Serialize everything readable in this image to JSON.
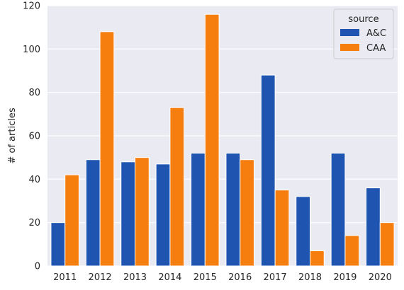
{
  "chart_data": {
    "type": "bar",
    "categories": [
      "2011",
      "2012",
      "2013",
      "2014",
      "2015",
      "2016",
      "2017",
      "2018",
      "2019",
      "2020"
    ],
    "series": [
      {
        "name": "A&C",
        "color": "#1f55b0",
        "values": [
          20,
          49,
          48,
          47,
          52,
          52,
          88,
          32,
          52,
          36
        ]
      },
      {
        "name": "CAA",
        "color": "#f57e0f",
        "values": [
          42,
          108,
          50,
          73,
          116,
          49,
          35,
          7,
          14,
          20
        ]
      }
    ],
    "title": "",
    "xlabel": "",
    "ylabel": "# of articles",
    "ylim": [
      0,
      120
    ],
    "yticks": [
      0,
      20,
      40,
      60,
      80,
      100,
      120
    ],
    "grid": true,
    "legend_title": "source",
    "legend_position": "top-right",
    "background_color": "#eaeaf2",
    "grid_color": "#ffffff"
  }
}
